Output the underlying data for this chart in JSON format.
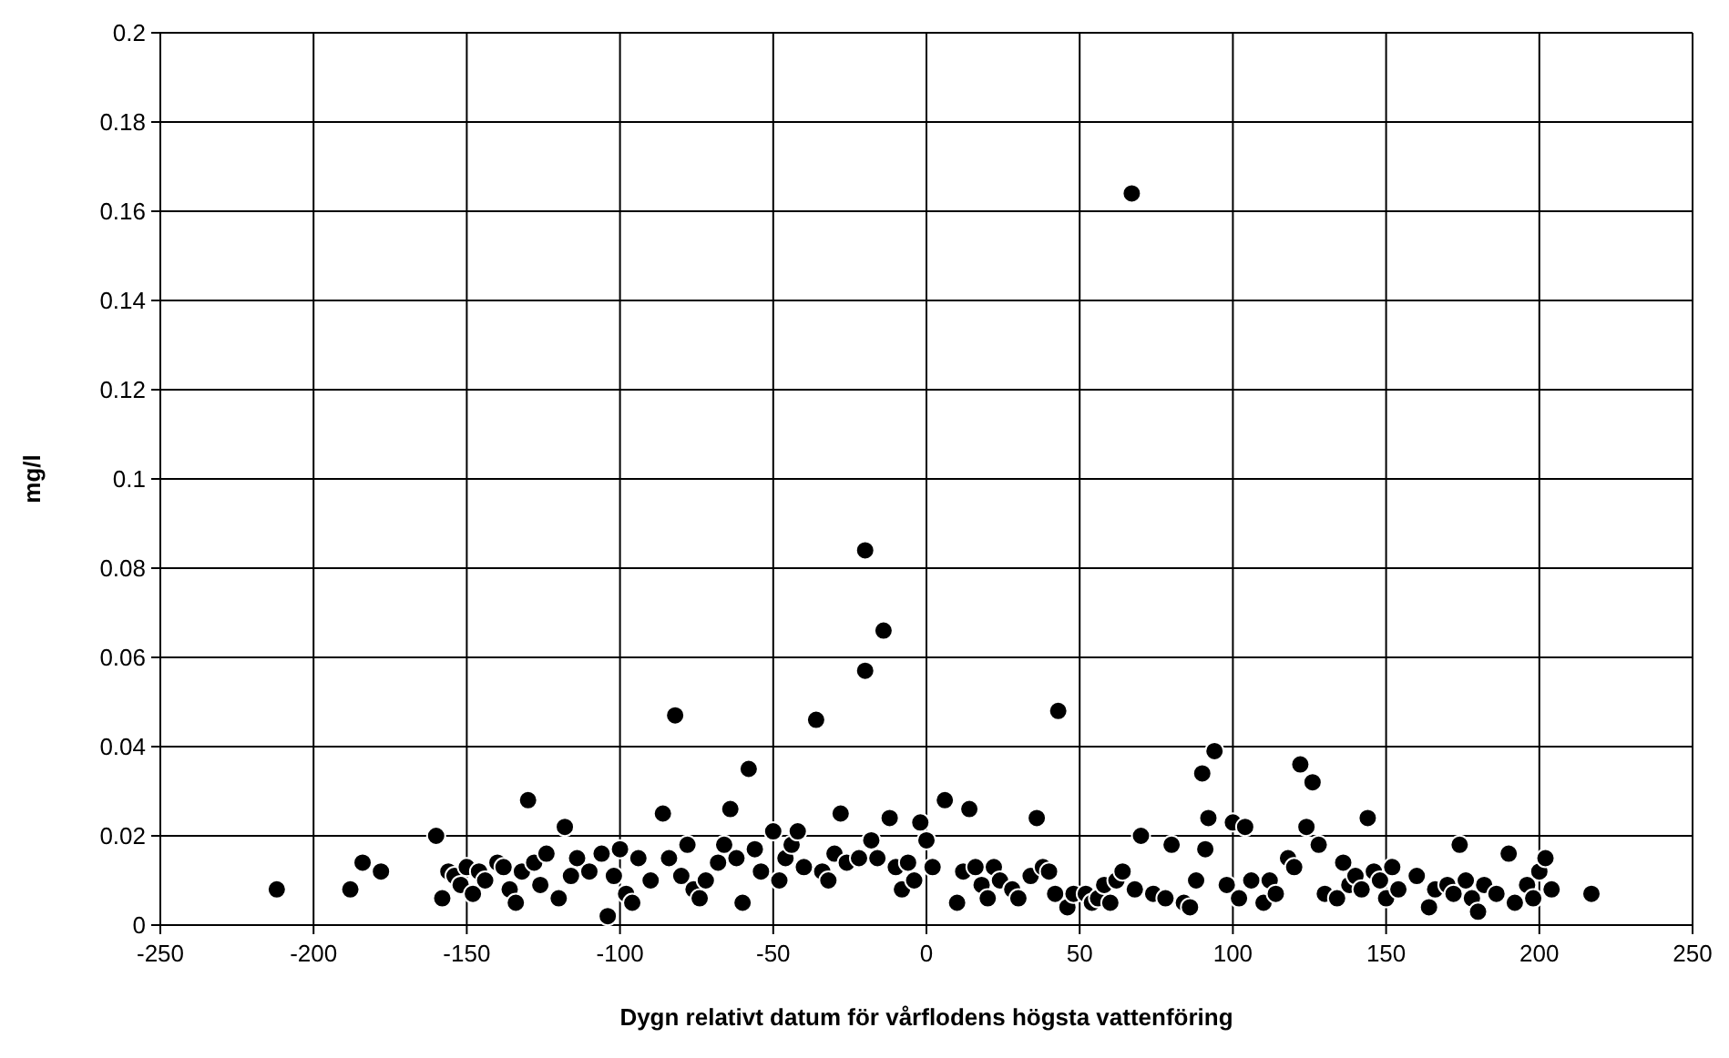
{
  "chart_data": {
    "type": "scatter",
    "xlabel": "Dygn relativt datum för vårflodens högsta vattenföring",
    "ylabel": "mg/l",
    "x": [
      -212,
      -188,
      -184,
      -178,
      -160,
      -158,
      -156,
      -154,
      -152,
      -150,
      -148,
      -146,
      -144,
      -140,
      -138,
      -136,
      -134,
      -132,
      -130,
      -128,
      -126,
      -124,
      -120,
      -118,
      -116,
      -114,
      -110,
      -106,
      -104,
      -102,
      -100,
      -98,
      -96,
      -94,
      -90,
      -86,
      -84,
      -82,
      -80,
      -78,
      -76,
      -74,
      -72,
      -68,
      -66,
      -64,
      -62,
      -60,
      -58,
      -56,
      -54,
      -50,
      -48,
      -46,
      -44,
      -42,
      -40,
      -36,
      -34,
      -32,
      -30,
      -28,
      -26,
      -22,
      -20,
      -20,
      -18,
      -16,
      -14,
      -12,
      -10,
      -8,
      -6,
      -4,
      -2,
      0,
      2,
      6,
      10,
      12,
      14,
      16,
      18,
      20,
      22,
      24,
      28,
      30,
      34,
      36,
      38,
      40,
      42,
      43,
      46,
      48,
      52,
      54,
      56,
      58,
      60,
      62,
      64,
      67,
      68,
      70,
      74,
      78,
      80,
      84,
      86,
      88,
      90,
      91,
      92,
      94,
      98,
      100,
      102,
      104,
      106,
      110,
      112,
      114,
      118,
      120,
      122,
      124,
      126,
      128,
      130,
      134,
      136,
      138,
      140,
      142,
      144,
      146,
      148,
      150,
      152,
      154,
      160,
      164,
      166,
      170,
      172,
      174,
      176,
      178,
      180,
      182,
      186,
      190,
      192,
      196,
      198,
      200,
      202,
      204,
      217
    ],
    "values": [
      0.008,
      0.008,
      0.014,
      0.012,
      0.02,
      0.006,
      0.012,
      0.011,
      0.009,
      0.013,
      0.007,
      0.012,
      0.01,
      0.014,
      0.013,
      0.008,
      0.005,
      0.012,
      0.028,
      0.014,
      0.009,
      0.016,
      0.006,
      0.022,
      0.011,
      0.015,
      0.012,
      0.016,
      0.002,
      0.011,
      0.017,
      0.007,
      0.005,
      0.015,
      0.01,
      0.025,
      0.015,
      0.047,
      0.011,
      0.018,
      0.008,
      0.006,
      0.01,
      0.014,
      0.018,
      0.026,
      0.015,
      0.005,
      0.035,
      0.017,
      0.012,
      0.021,
      0.01,
      0.015,
      0.018,
      0.021,
      0.013,
      0.046,
      0.012,
      0.01,
      0.016,
      0.025,
      0.014,
      0.015,
      0.057,
      0.084,
      0.019,
      0.015,
      0.066,
      0.024,
      0.013,
      0.008,
      0.014,
      0.01,
      0.023,
      0.019,
      0.013,
      0.028,
      0.005,
      0.012,
      0.026,
      0.013,
      0.009,
      0.006,
      0.013,
      0.01,
      0.008,
      0.006,
      0.011,
      0.024,
      0.013,
      0.012,
      0.007,
      0.048,
      0.004,
      0.007,
      0.007,
      0.005,
      0.006,
      0.009,
      0.005,
      0.01,
      0.012,
      0.164,
      0.008,
      0.02,
      0.007,
      0.006,
      0.018,
      0.005,
      0.004,
      0.01,
      0.034,
      0.017,
      0.024,
      0.039,
      0.009,
      0.023,
      0.006,
      0.022,
      0.01,
      0.005,
      0.01,
      0.007,
      0.015,
      0.013,
      0.036,
      0.022,
      0.032,
      0.018,
      0.007,
      0.006,
      0.014,
      0.009,
      0.011,
      0.008,
      0.024,
      0.012,
      0.01,
      0.006,
      0.013,
      0.008,
      0.011,
      0.004,
      0.008,
      0.009,
      0.007,
      0.018,
      0.01,
      0.006,
      0.003,
      0.009,
      0.007,
      0.016,
      0.005,
      0.009,
      0.006,
      0.012,
      0.015,
      0.008,
      0.007
    ],
    "color": "#000000",
    "marker": "circle",
    "grid": true,
    "xlim": [
      -250,
      250
    ],
    "xticks": [
      -250,
      -200,
      -150,
      -100,
      -50,
      0,
      50,
      100,
      150,
      200,
      250
    ],
    "ylim": [
      0,
      0.2
    ],
    "yticks": [
      0,
      0.02,
      0.04,
      0.06,
      0.08,
      0.1,
      0.12,
      0.14,
      0.16,
      0.18,
      0.2
    ]
  }
}
